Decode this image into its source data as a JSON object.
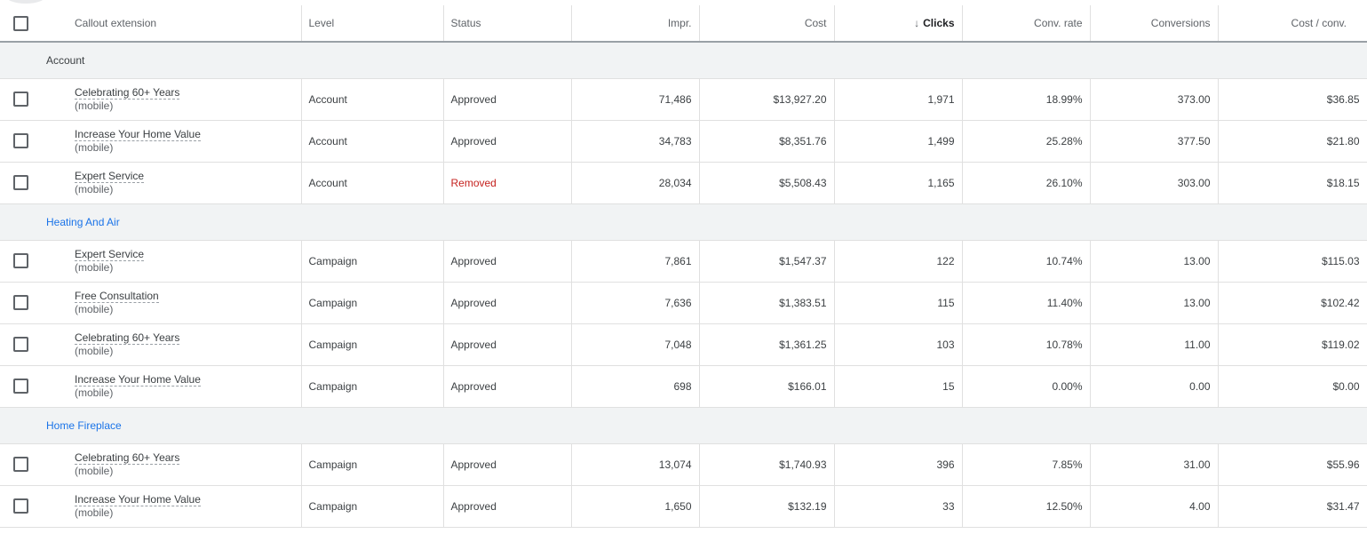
{
  "table": {
    "headers": {
      "name": "Callout extension",
      "level": "Level",
      "status": "Status",
      "impr": "Impr.",
      "cost": "Cost",
      "clicks": "Clicks",
      "conv_rate": "Conv. rate",
      "conversions": "Conversions",
      "cost_per_conv": "Cost / conv."
    },
    "sort_column": "clicks",
    "sort_direction": "descending",
    "groups": [
      {
        "label": "Account",
        "is_link": false,
        "rows": [
          {
            "name": "Celebrating 60+ Years",
            "device": "(mobile)",
            "level": "Account",
            "status": "Approved",
            "impr": "71,486",
            "cost": "$13,927.20",
            "clicks": "1,971",
            "conv_rate": "18.99%",
            "conversions": "373.00",
            "cost_per_conv": "$36.85"
          },
          {
            "name": "Increase Your Home Value",
            "device": "(mobile)",
            "level": "Account",
            "status": "Approved",
            "impr": "34,783",
            "cost": "$8,351.76",
            "clicks": "1,499",
            "conv_rate": "25.28%",
            "conversions": "377.50",
            "cost_per_conv": "$21.80"
          },
          {
            "name": "Expert Service",
            "device": "(mobile)",
            "level": "Account",
            "status": "Removed",
            "impr": "28,034",
            "cost": "$5,508.43",
            "clicks": "1,165",
            "conv_rate": "26.10%",
            "conversions": "303.00",
            "cost_per_conv": "$18.15"
          }
        ]
      },
      {
        "label": "Heating And Air",
        "is_link": true,
        "rows": [
          {
            "name": "Expert Service",
            "device": "(mobile)",
            "level": "Campaign",
            "status": "Approved",
            "impr": "7,861",
            "cost": "$1,547.37",
            "clicks": "122",
            "conv_rate": "10.74%",
            "conversions": "13.00",
            "cost_per_conv": "$115.03"
          },
          {
            "name": "Free Consultation",
            "device": "(mobile)",
            "level": "Campaign",
            "status": "Approved",
            "impr": "7,636",
            "cost": "$1,383.51",
            "clicks": "115",
            "conv_rate": "11.40%",
            "conversions": "13.00",
            "cost_per_conv": "$102.42"
          },
          {
            "name": "Celebrating 60+ Years",
            "device": "(mobile)",
            "level": "Campaign",
            "status": "Approved",
            "impr": "7,048",
            "cost": "$1,361.25",
            "clicks": "103",
            "conv_rate": "10.78%",
            "conversions": "11.00",
            "cost_per_conv": "$119.02"
          },
          {
            "name": "Increase Your Home Value",
            "device": "(mobile)",
            "level": "Campaign",
            "status": "Approved",
            "impr": "698",
            "cost": "$166.01",
            "clicks": "15",
            "conv_rate": "0.00%",
            "conversions": "0.00",
            "cost_per_conv": "$0.00"
          }
        ]
      },
      {
        "label": "Home Fireplace",
        "is_link": true,
        "rows": [
          {
            "name": "Celebrating 60+ Years",
            "device": "(mobile)",
            "level": "Campaign",
            "status": "Approved",
            "impr": "13,074",
            "cost": "$1,740.93",
            "clicks": "396",
            "conv_rate": "7.85%",
            "conversions": "31.00",
            "cost_per_conv": "$55.96"
          },
          {
            "name": "Increase Your Home Value",
            "device": "(mobile)",
            "level": "Campaign",
            "status": "Approved",
            "impr": "1,650",
            "cost": "$132.19",
            "clicks": "33",
            "conv_rate": "12.50%",
            "conversions": "4.00",
            "cost_per_conv": "$31.47"
          }
        ]
      }
    ]
  },
  "colors": {
    "link": "#1a73e8",
    "removed": "#c5221f",
    "group_bg": "#f1f3f4"
  }
}
